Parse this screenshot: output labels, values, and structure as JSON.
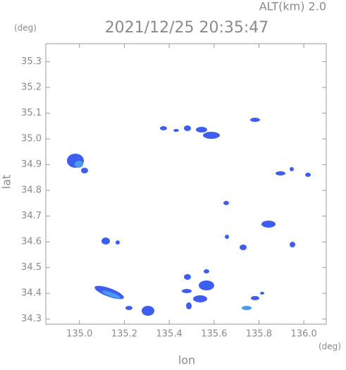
{
  "chart_data": {
    "type": "map",
    "title": "2021/12/25 20:35:47",
    "altitude_label": "ALT(km)  2.0",
    "y_unit": "(deg)",
    "x_unit": "(deg)",
    "xlabel": "lon",
    "ylabel": "lat",
    "xlim": [
      134.85,
      136.1
    ],
    "ylim": [
      34.28,
      35.37
    ],
    "xticks": [
      {
        "value": 135.0,
        "label": "135.0"
      },
      135.2,
      135.4,
      135.6,
      135.8,
      {
        "value": 136.0,
        "label": "136.0"
      }
    ],
    "yticks": [
      34.3,
      34.4,
      34.5,
      34.6,
      34.7,
      34.8,
      34.9,
      {
        "value": 35.0,
        "label": "35.0"
      },
      35.1,
      35.2,
      35.3
    ]
  }
}
